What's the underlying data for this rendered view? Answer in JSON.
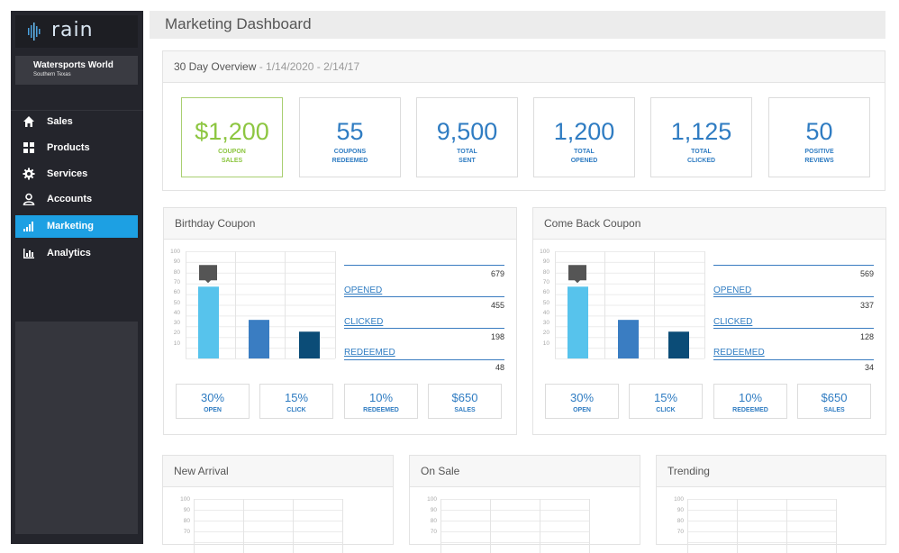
{
  "brand": {
    "name": "rain"
  },
  "org": {
    "name": "Watersports World",
    "region": "Southern Texas"
  },
  "nav": [
    {
      "label": "Sales",
      "icon": "home-icon"
    },
    {
      "label": "Products",
      "icon": "grid-icon"
    },
    {
      "label": "Services",
      "icon": "gear-icon"
    },
    {
      "label": "Accounts",
      "icon": "user-icon"
    },
    {
      "label": "Marketing",
      "icon": "signal-icon",
      "active": true
    },
    {
      "label": "Analytics",
      "icon": "bar-chart-icon"
    }
  ],
  "page": {
    "title": "Marketing Dashboard"
  },
  "overview": {
    "title": "30 Day Overview",
    "date_range": "- 1/14/2020 - 2/14/17",
    "stats": [
      {
        "value": "$1,200",
        "label1": "COUPON",
        "label2": "SALES"
      },
      {
        "value": "55",
        "label1": "COUPONS",
        "label2": "REDEEMED"
      },
      {
        "value": "9,500",
        "label1": "TOTAL",
        "label2": "SENT"
      },
      {
        "value": "1,200",
        "label1": "TOTAL",
        "label2": "OPENED"
      },
      {
        "value": "1,125",
        "label1": "TOTAL",
        "label2": "CLICKED"
      },
      {
        "value": "50",
        "label1": "POSITIVE",
        "label2": "REVIEWS"
      }
    ]
  },
  "coupons": [
    {
      "title": "Birthday Coupon",
      "sent": "679",
      "opened": {
        "label": "OPENED",
        "value": "455"
      },
      "clicked": {
        "label": "CLICKED",
        "value": "198"
      },
      "redeemed": {
        "label": "REDEEMED",
        "value": "48"
      },
      "bars": [
        67,
        36,
        25
      ],
      "metrics": [
        {
          "value": "30%",
          "label": "OPEN"
        },
        {
          "value": "15%",
          "label": "CLICK"
        },
        {
          "value": "10%",
          "label": "REDEEMED"
        },
        {
          "value": "$650",
          "label": "SALES"
        }
      ]
    },
    {
      "title": "Come Back Coupon",
      "sent": "569",
      "opened": {
        "label": "OPENED",
        "value": "337"
      },
      "clicked": {
        "label": "CLICKED",
        "value": "128"
      },
      "redeemed": {
        "label": "REDEEMED",
        "value": "34"
      },
      "bars": [
        67,
        36,
        25
      ],
      "metrics": [
        {
          "value": "30%",
          "label": "OPEN"
        },
        {
          "value": "15%",
          "label": "CLICK"
        },
        {
          "value": "10%",
          "label": "REDEEMED"
        },
        {
          "value": "$650",
          "label": "SALES"
        }
      ]
    }
  ],
  "bottom_panels": [
    {
      "title": "New Arrival"
    },
    {
      "title": "On Sale"
    },
    {
      "title": "Trending"
    }
  ],
  "yticks": [
    "100",
    "90",
    "80",
    "70",
    "60",
    "50",
    "40",
    "30",
    "20",
    "10"
  ],
  "mini_yticks": [
    "100",
    "90",
    "80",
    "70"
  ],
  "colors": {
    "accent": "#1da0e3",
    "blue": "#2f7cc2",
    "green": "#8dc641",
    "bar1": "#57c3ec",
    "bar2": "#3a7dc2",
    "bar3": "#0b4c77"
  }
}
